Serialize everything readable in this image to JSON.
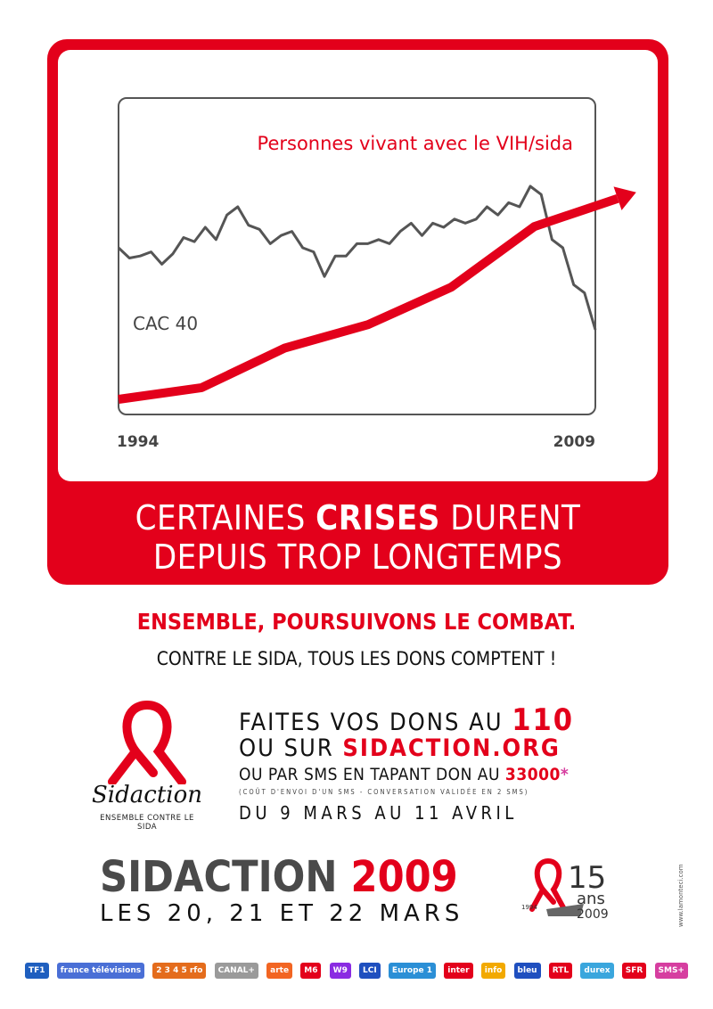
{
  "chart_data": {
    "type": "line",
    "annotations": [
      "Personnes vivant avec le VIH/sida",
      "CAC 40"
    ],
    "x_start_label": "1994",
    "x_end_label": "2009",
    "series": [
      {
        "name": "CAC 40",
        "color": "#555555",
        "values": [
          0.6,
          0.55,
          0.56,
          0.58,
          0.52,
          0.57,
          0.65,
          0.63,
          0.7,
          0.64,
          0.76,
          0.8,
          0.71,
          0.69,
          0.62,
          0.66,
          0.68,
          0.6,
          0.58,
          0.46,
          0.56,
          0.56,
          0.62,
          0.62,
          0.64,
          0.62,
          0.68,
          0.72,
          0.66,
          0.72,
          0.7,
          0.74,
          0.72,
          0.74,
          0.8,
          0.76,
          0.82,
          0.8,
          0.9,
          0.86,
          0.64,
          0.6,
          0.42,
          0.38,
          0.2
        ]
      },
      {
        "name": "Personnes vivant avec le VIH/sida",
        "color": "#e3001b",
        "values": [
          0.0,
          0.05,
          0.22,
          0.32,
          0.48,
          0.74,
          0.86
        ]
      }
    ]
  },
  "headline": {
    "line1_before": "CERTAINES ",
    "line1_bold": "CRISES",
    "line1_after": " DURENT",
    "line2": "DEPUIS TROP LONGTEMPS"
  },
  "slogan": {
    "line1": "ENSEMBLE, POURSUIVONS LE COMBAT.",
    "line2": "CONTRE LE SIDA, TOUS LES DONS COMPTENT !"
  },
  "logo": {
    "name": "Sidaction",
    "tagline": "ENSEMBLE CONTRE LE SIDA"
  },
  "donations": {
    "line1_text": "FAITES VOS DONS AU ",
    "line1_number": "110",
    "line2_text": "OU SUR ",
    "line2_site": "SIDACTION.ORG",
    "line3_text": "OU PAR SMS EN TAPANT DON AU ",
    "line3_number": "33000",
    "line3_asterisk": "*",
    "note": "(COÛT D'ENVOI D'UN SMS - CONVERSATION VALIDÉE EN 2 SMS)",
    "period": "DU 9 MARS AU 11 AVRIL"
  },
  "event": {
    "title_grey": "SIDACTION ",
    "title_year": "2009",
    "dates": "LES 20, 21 ET 22 MARS"
  },
  "anniversary": {
    "number": "15",
    "unit": "ans",
    "start_year": "1994",
    "end_year": "2009"
  },
  "side_url": "www.lamonteci.com",
  "sponsors": [
    {
      "label": "TF1",
      "color": "#1f5fbf"
    },
    {
      "label": "france télévisions",
      "color": "#4a6fd6"
    },
    {
      "label": "2 3 4 5 rfo",
      "color": "#e46c1c"
    },
    {
      "label": "CANAL+",
      "color": "#9a9a9a"
    },
    {
      "label": "arte",
      "color": "#f26522"
    },
    {
      "label": "M6",
      "color": "#e3001b"
    },
    {
      "label": "W9",
      "color": "#8a2be2"
    },
    {
      "label": "LCI",
      "color": "#1f4fbf"
    },
    {
      "label": "Europe 1",
      "color": "#2b8fd6"
    },
    {
      "label": "inter",
      "color": "#e3001b"
    },
    {
      "label": "info",
      "color": "#f2a900"
    },
    {
      "label": "bleu",
      "color": "#1f4fbf"
    },
    {
      "label": "RTL",
      "color": "#e3001b"
    },
    {
      "label": "durex",
      "color": "#3aa6dd"
    },
    {
      "label": "SFR",
      "color": "#e3001b"
    },
    {
      "label": "SMS+",
      "color": "#d63ea0"
    }
  ]
}
